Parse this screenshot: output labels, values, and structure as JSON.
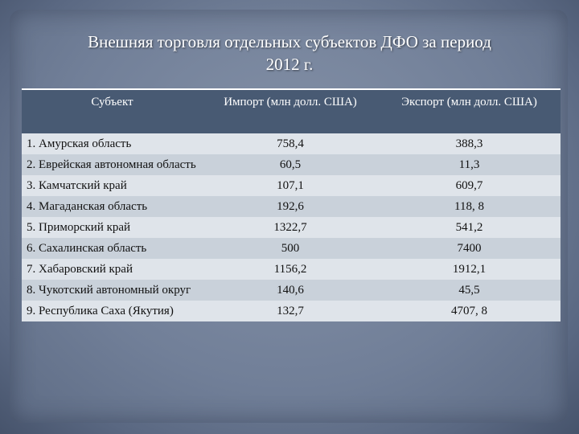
{
  "title_line1": "Внешняя торговля отдельных субъектов ДФО за период",
  "title_line2": "2012 г.",
  "table": {
    "headers": [
      "Субъект",
      "Импорт (млн долл. США)",
      "Экспорт (млн долл. США)"
    ],
    "rows": [
      {
        "name": "1. Амурская область",
        "import": "758,4",
        "export": "388,3"
      },
      {
        "name": "2. Еврейская автономная область",
        "import": "60,5",
        "export": "11,3"
      },
      {
        "name": "3. Камчатский край",
        "import": "107,1",
        "export": "609,7"
      },
      {
        "name": "4. Магаданская область",
        "import": "192,6",
        "export": "118, 8"
      },
      {
        "name": "5. Приморский край",
        "import": "1322,7",
        "export": "541,2"
      },
      {
        "name": "6. Сахалинская область",
        "import": "500",
        "export": "7400"
      },
      {
        "name": "7. Хабаровский край",
        "import": "1156,2",
        "export": "1912,1"
      },
      {
        "name": "8. Чукотский автономный округ",
        "import": "140,6",
        "export": "45,5"
      },
      {
        "name": "9. Республика Саха (Якутия)",
        "import": "132,7",
        "export": "4707, 8"
      }
    ]
  }
}
